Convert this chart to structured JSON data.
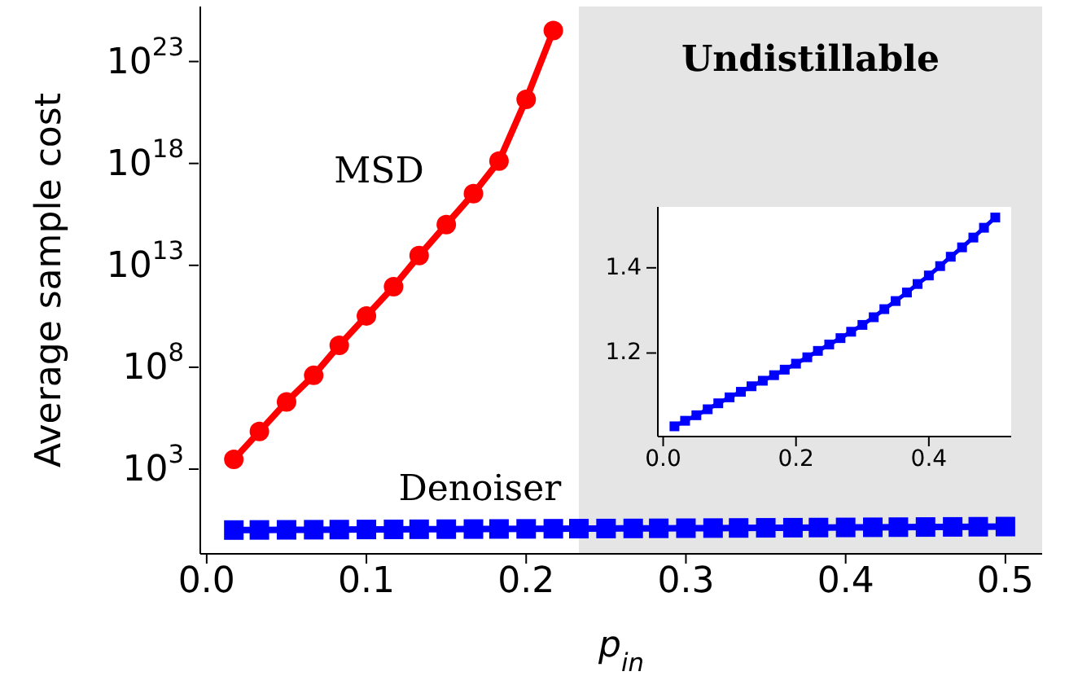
{
  "chart_data": [
    {
      "type": "line",
      "xlabel": "p$_{in}$",
      "ylabel": "Average sample cost",
      "log": "y",
      "xlim": [
        -0.004,
        0.523
      ],
      "ylim": [
        0.07,
        5e+25
      ],
      "xticks": [
        {
          "value": 0,
          "label": "0.0"
        },
        0.1,
        0.2,
        0.3,
        0.4,
        0.5
      ],
      "yticks": [
        {
          "value": 1000.0,
          "label": "10$^{3}$"
        },
        {
          "value": 100000000.0,
          "label": "10$^{8}$"
        },
        {
          "value": 10000000000000.0,
          "label": "10$^{13}$"
        },
        {
          "value": 1e+18,
          "label": "10$^{18}$"
        },
        {
          "value": 1e+23,
          "label": "10$^{23}$"
        }
      ],
      "bands": [
        {
          "axis": "x",
          "from": 0.233,
          "to": 0.523,
          "label": "Undistillable",
          "color": "#e5e5e5"
        }
      ],
      "series": [
        {
          "name": "MSD",
          "color": "#ff0000",
          "marker": "circle",
          "x": [
            0.017,
            0.033,
            0.05,
            0.067,
            0.083,
            0.1,
            0.117,
            0.133,
            0.15,
            0.167,
            0.183,
            0.2,
            0.217
          ],
          "values": [
            3000.0,
            70000.0,
            2000000.0,
            40000000.0,
            1200000000.0,
            33000000000.0,
            900000000000.0,
            30000000000000.0,
            1000000000000000.0,
            3.3e+16,
            1.3e+18,
            1.4e+21,
            3.3e+24
          ]
        },
        {
          "name": "Denoiser",
          "color": "#0000ff",
          "marker": "square",
          "x": [
            0.017,
            0.033,
            0.05,
            0.067,
            0.083,
            0.1,
            0.117,
            0.133,
            0.15,
            0.167,
            0.183,
            0.2,
            0.217,
            0.233,
            0.25,
            0.267,
            0.283,
            0.3,
            0.317,
            0.333,
            0.35,
            0.367,
            0.383,
            0.4,
            0.417,
            0.433,
            0.45,
            0.467,
            0.483,
            0.5
          ],
          "values": [
            1.028,
            1.041,
            1.054,
            1.068,
            1.082,
            1.096,
            1.109,
            1.122,
            1.135,
            1.148,
            1.161,
            1.175,
            1.19,
            1.205,
            1.22,
            1.235,
            1.25,
            1.266,
            1.284,
            1.303,
            1.322,
            1.342,
            1.362,
            1.382,
            1.404,
            1.426,
            1.448,
            1.471,
            1.494,
            1.518
          ]
        }
      ]
    },
    {
      "type": "line",
      "xlim": [
        -0.008,
        0.524
      ],
      "ylim": [
        1.004,
        1.543
      ],
      "xticks": [
        {
          "value": 0,
          "label": "0.0"
        },
        0.2,
        0.4
      ],
      "yticks": [
        1.2,
        1.4
      ],
      "series": [
        {
          "color": "#0000ff",
          "marker": "square",
          "x": [
            0.017,
            0.033,
            0.05,
            0.067,
            0.083,
            0.1,
            0.117,
            0.133,
            0.15,
            0.167,
            0.183,
            0.2,
            0.217,
            0.233,
            0.25,
            0.267,
            0.283,
            0.3,
            0.317,
            0.333,
            0.35,
            0.367,
            0.383,
            0.4,
            0.417,
            0.433,
            0.45,
            0.467,
            0.483,
            0.5
          ],
          "values": [
            1.028,
            1.041,
            1.054,
            1.068,
            1.082,
            1.096,
            1.109,
            1.122,
            1.135,
            1.148,
            1.161,
            1.175,
            1.19,
            1.205,
            1.22,
            1.235,
            1.25,
            1.266,
            1.284,
            1.303,
            1.322,
            1.342,
            1.362,
            1.382,
            1.404,
            1.426,
            1.448,
            1.471,
            1.494,
            1.518
          ]
        }
      ]
    }
  ]
}
